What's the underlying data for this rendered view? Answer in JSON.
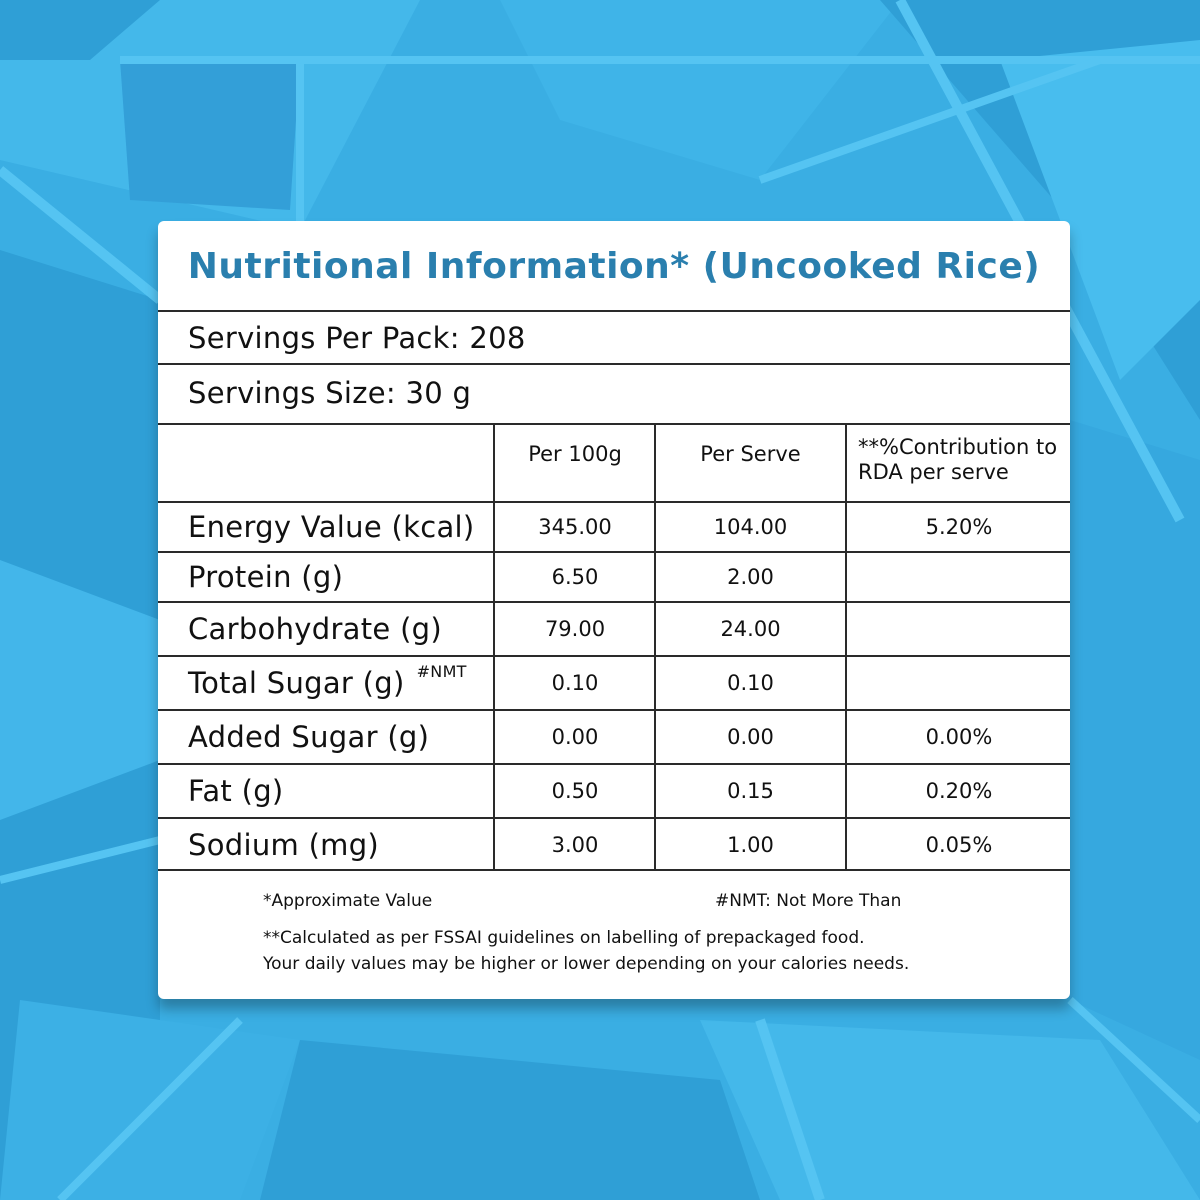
{
  "title": "Nutritional Information* (Uncooked Rice)",
  "servings_per_pack": "Servings Per Pack: 208",
  "serving_size": "Servings Size: 30 g",
  "table": {
    "columns": [
      "",
      "Per 100g",
      "Per Serve",
      "**%Contribution to RDA per serve"
    ],
    "rows": [
      {
        "label": "Energy Value (kcal)",
        "note": "",
        "per100g": "345.00",
        "perServe": "104.00",
        "rda": "5.20%"
      },
      {
        "label": "Protein (g)",
        "note": "",
        "per100g": "6.50",
        "perServe": "2.00",
        "rda": ""
      },
      {
        "label": "Carbohydrate (g)",
        "note": "",
        "per100g": "79.00",
        "perServe": "24.00",
        "rda": ""
      },
      {
        "label": "Total Sugar (g)",
        "note": "#NMT",
        "per100g": "0.10",
        "perServe": "0.10",
        "rda": ""
      },
      {
        "label": "Added Sugar (g)",
        "note": "",
        "per100g": "0.00",
        "perServe": "0.00",
        "rda": "0.00%"
      },
      {
        "label": "Fat (g)",
        "note": "",
        "per100g": "0.50",
        "perServe": "0.15",
        "rda": "0.20%"
      },
      {
        "label": "Sodium (mg)",
        "note": "",
        "per100g": "3.00",
        "perServe": "1.00",
        "rda": "0.05%"
      }
    ]
  },
  "footnotes": {
    "approx": "*Approximate Value",
    "nmt": "#NMT: Not More Than",
    "calc_line1": "**Calculated as per FSSAI guidelines on labelling of prepackaged food.",
    "calc_line2": "Your daily values may be higher or lower depending on your calories needs."
  },
  "colors": {
    "background": "#3aaee3",
    "title": "#2a7fae",
    "card": "#ffffff"
  }
}
